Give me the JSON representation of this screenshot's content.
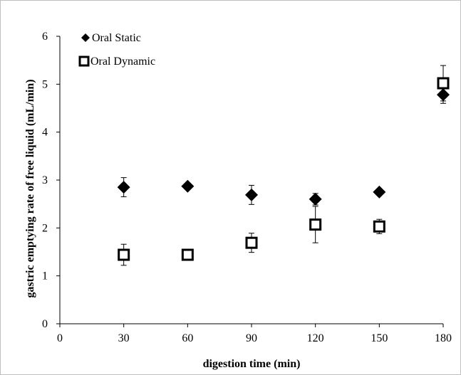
{
  "chart_data": {
    "type": "scatter",
    "xlabel": "digestion time  (min)",
    "ylabel": "gastric emptying rate of free liquid  (mL/min)",
    "xlim": [
      0,
      180
    ],
    "ylim": [
      0,
      6
    ],
    "xticks": [
      0,
      30,
      60,
      90,
      120,
      150,
      180
    ],
    "yticks": [
      0,
      1,
      2,
      3,
      4,
      5,
      6
    ],
    "grid": false,
    "legend_position": "top-left",
    "series": [
      {
        "name": "Oral Static",
        "marker": "diamond",
        "color": "#000000",
        "x": [
          30,
          60,
          90,
          120,
          150,
          180
        ],
        "y": [
          2.85,
          2.87,
          2.69,
          2.6,
          2.75,
          4.78
        ],
        "error": [
          0.2,
          0.04,
          0.2,
          0.12,
          0.05,
          0.18
        ]
      },
      {
        "name": "Oral Dynamic",
        "marker": "open-square",
        "color": "#000000",
        "x": [
          30,
          60,
          90,
          120,
          150,
          180
        ],
        "y": [
          1.44,
          1.44,
          1.69,
          2.07,
          2.03,
          5.02
        ],
        "error": [
          0.22,
          0.04,
          0.2,
          0.38,
          0.15,
          0.37
        ]
      }
    ]
  }
}
